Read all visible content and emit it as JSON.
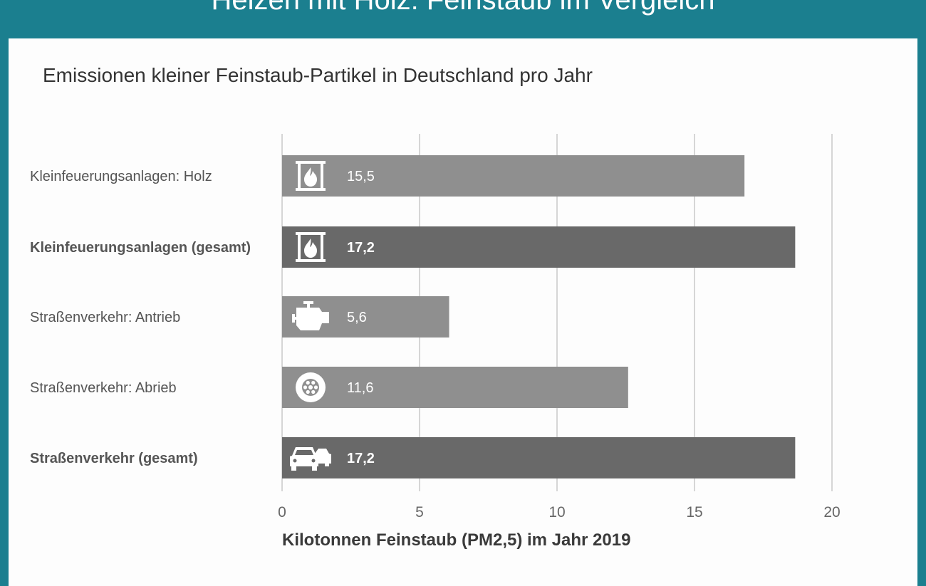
{
  "header": {
    "title": "Heizen mit Holz: Feinstaub im Vergleich"
  },
  "chart_data": {
    "type": "bar",
    "orientation": "horizontal",
    "title": "Heizen mit Holz: Feinstaub im Vergleich",
    "subtitle": "Emissionen kleiner Feinstaub-Partikel in Deutschland pro Jahr",
    "xlabel": "Kilotonnen Feinstaub (PM2,5) im Jahr 2019",
    "ylabel": "",
    "xlim": [
      0,
      20
    ],
    "xticks": [
      0,
      5,
      10,
      15,
      20
    ],
    "xtick_labels": [
      "0",
      "5",
      "10",
      "15",
      "20"
    ],
    "grid": "vertical",
    "categories": [
      "Kleinfeuerungsanlagen: Holz",
      "Kleinfeuerungsanlagen (gesamt)",
      "Straßenverkehr: Antrieb",
      "Straßenverkehr: Abrieb",
      "Straßenverkehr (gesamt)"
    ],
    "values": [
      15.5,
      17.2,
      5.6,
      11.6,
      17.2
    ],
    "value_labels": [
      "15,5",
      "17,2",
      "5,6",
      "11,6",
      "17,2"
    ],
    "bold": [
      false,
      true,
      false,
      false,
      true
    ],
    "icons": [
      "fireplace-icon",
      "fireplace-icon",
      "engine-icon",
      "wheel-icon",
      "cars-icon"
    ],
    "colors": {
      "bar": "#8f8f8f",
      "bar_total": "#696969",
      "grid": "#d6d6d6",
      "header_background": "#1b7f8f"
    }
  }
}
